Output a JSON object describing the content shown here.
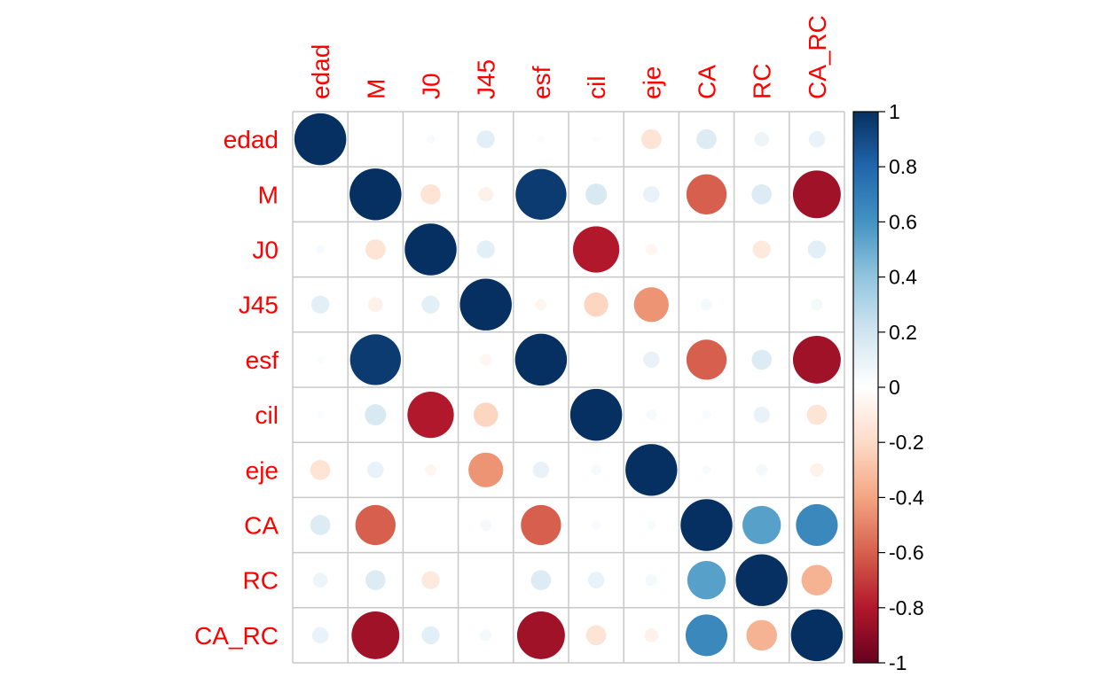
{
  "chart_data": {
    "type": "heatmap",
    "subtype": "correlation-circle-matrix",
    "variables": [
      "edad",
      "M",
      "J0",
      "J45",
      "esf",
      "cil",
      "eje",
      "CA",
      "RC",
      "CA_RC"
    ],
    "matrix": [
      [
        1.0,
        0.0,
        0.03,
        0.12,
        0.02,
        0.02,
        -0.15,
        0.15,
        0.08,
        0.1
      ],
      [
        0.0,
        1.0,
        -0.15,
        -0.08,
        0.96,
        0.17,
        0.1,
        -0.6,
        0.15,
        -0.85
      ],
      [
        0.03,
        -0.15,
        1.0,
        0.12,
        0.0,
        -0.8,
        -0.05,
        0.0,
        -0.12,
        0.12
      ],
      [
        0.12,
        -0.08,
        0.12,
        1.0,
        -0.05,
        -0.22,
        -0.45,
        0.05,
        0.0,
        0.05
      ],
      [
        0.02,
        0.96,
        0.0,
        -0.05,
        1.0,
        0.0,
        0.1,
        -0.6,
        0.15,
        -0.85
      ],
      [
        0.02,
        0.17,
        -0.8,
        -0.22,
        0.0,
        1.0,
        0.04,
        0.03,
        0.1,
        -0.15
      ],
      [
        -0.15,
        0.1,
        -0.05,
        -0.45,
        0.1,
        0.04,
        1.0,
        0.03,
        0.05,
        -0.07
      ],
      [
        0.15,
        -0.6,
        0.0,
        0.05,
        -0.6,
        0.03,
        0.03,
        1.0,
        0.55,
        0.65
      ],
      [
        0.08,
        0.15,
        -0.12,
        0.0,
        0.15,
        0.1,
        0.05,
        0.55,
        1.0,
        -0.35
      ],
      [
        0.1,
        -0.85,
        0.12,
        0.05,
        -0.85,
        -0.15,
        -0.07,
        0.65,
        -0.35,
        1.0
      ]
    ],
    "value_range": [
      -1,
      1
    ],
    "colorbar": {
      "ticks": [
        "1",
        "0.8",
        "0.6",
        "0.4",
        "0.2",
        "0",
        "-0.2",
        "-0.4",
        "-0.6",
        "-0.8",
        "-1"
      ],
      "tick_values": [
        1,
        0.8,
        0.6,
        0.4,
        0.2,
        0,
        -0.2,
        -0.4,
        -0.6,
        -0.8,
        -1
      ]
    },
    "colors": {
      "label": "#ff0000",
      "grid": "#c8c8c8",
      "negative_end": "#67001f",
      "zero": "#ffffff",
      "positive_end": "#053061"
    }
  }
}
